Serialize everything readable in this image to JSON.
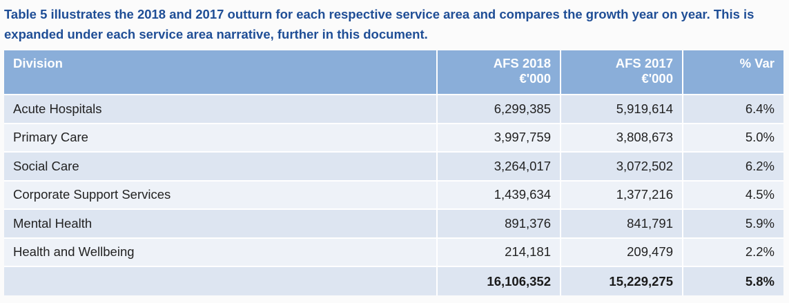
{
  "intro": {
    "text": "Table 5 illustrates the 2018 and 2017 outturn for each respective service area and compares the growth year on year. This is expanded under each service area narrative, further in this document."
  },
  "table": {
    "headers": {
      "division": "Division",
      "afs2018_line1": "AFS 2018",
      "afs2018_line2": "€'000",
      "afs2017_line1": "AFS 2017",
      "afs2017_line2": "€'000",
      "var": "% Var"
    },
    "rows": [
      {
        "division": "Acute Hospitals",
        "afs2018": "6,299,385",
        "afs2017": "5,919,614",
        "var": "6.4%"
      },
      {
        "division": "Primary Care",
        "afs2018": "3,997,759",
        "afs2017": "3,808,673",
        "var": "5.0%"
      },
      {
        "division": "Social Care",
        "afs2018": "3,264,017",
        "afs2017": "3,072,502",
        "var": "6.2%"
      },
      {
        "division": "Corporate Support Services",
        "afs2018": "1,439,634",
        "afs2017": "1,377,216",
        "var": "4.5%"
      },
      {
        "division": "Mental Health",
        "afs2018": "891,376",
        "afs2017": "841,791",
        "var": "5.9%"
      },
      {
        "division": "Health and Wellbeing",
        "afs2018": "214,181",
        "afs2017": "209,479",
        "var": "2.2%"
      }
    ],
    "total": {
      "division": "",
      "afs2018": "16,106,352",
      "afs2017": "15,229,275",
      "var": "5.8%"
    }
  },
  "colors": {
    "heading_text": "#1f4e96",
    "header_bg": "#8aaed9",
    "row_dark": "#dde5f1",
    "row_light": "#eef2f8"
  }
}
